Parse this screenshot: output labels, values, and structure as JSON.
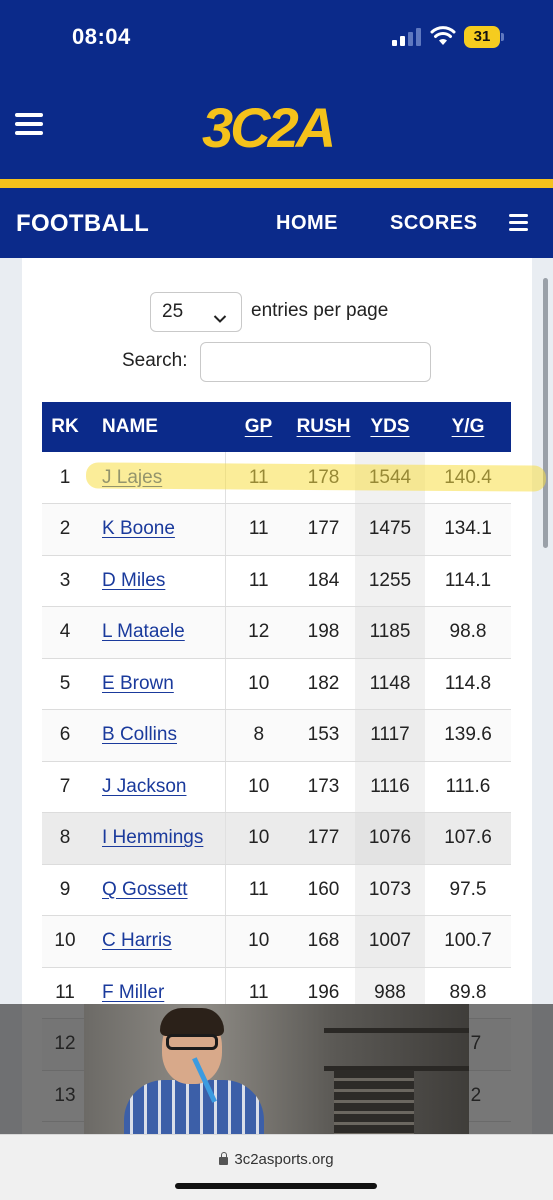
{
  "status_bar": {
    "time": "08:04",
    "battery": "31"
  },
  "header": {
    "logo": "3C2A"
  },
  "subnav": {
    "title": "FOOTBALL",
    "home": "HOME",
    "scores": "SCORES"
  },
  "controls": {
    "entries_value": "25",
    "entries_label": "entries per page",
    "search_label": "Search:",
    "search_value": ""
  },
  "table": {
    "columns": [
      "RK",
      "NAME",
      "GP",
      "RUSH",
      "YDS",
      "Y/G"
    ],
    "rows": [
      [
        "1",
        "J Lajes",
        "11",
        "178",
        "1544",
        "140.4"
      ],
      [
        "2",
        "K Boone",
        "11",
        "177",
        "1475",
        "134.1"
      ],
      [
        "3",
        "D Miles",
        "11",
        "184",
        "1255",
        "114.1"
      ],
      [
        "4",
        "L Mataele",
        "12",
        "198",
        "1185",
        "98.8"
      ],
      [
        "5",
        "E Brown",
        "10",
        "182",
        "1148",
        "114.8"
      ],
      [
        "6",
        "B Collins",
        "8",
        "153",
        "1117",
        "139.6"
      ],
      [
        "7",
        "J Jackson",
        "10",
        "173",
        "1116",
        "111.6"
      ],
      [
        "8",
        "I Hemmings",
        "10",
        "177",
        "1076",
        "107.6"
      ],
      [
        "9",
        "Q Gossett",
        "11",
        "160",
        "1073",
        "97.5"
      ],
      [
        "10",
        "C Harris",
        "10",
        "168",
        "1007",
        "100.7"
      ],
      [
        "11",
        "F Miller",
        "11",
        "196",
        "988",
        "89.8"
      ],
      [
        "12",
        "",
        "",
        "",
        "",
        "9.7"
      ],
      [
        "13",
        "",
        "",
        "",
        "",
        "0.2"
      ]
    ]
  },
  "url_bar": {
    "url": "3c2asports.org"
  },
  "colors": {
    "navy": "#0b2a8a",
    "gold": "#f5c21b",
    "link": "#1a3a9c"
  }
}
